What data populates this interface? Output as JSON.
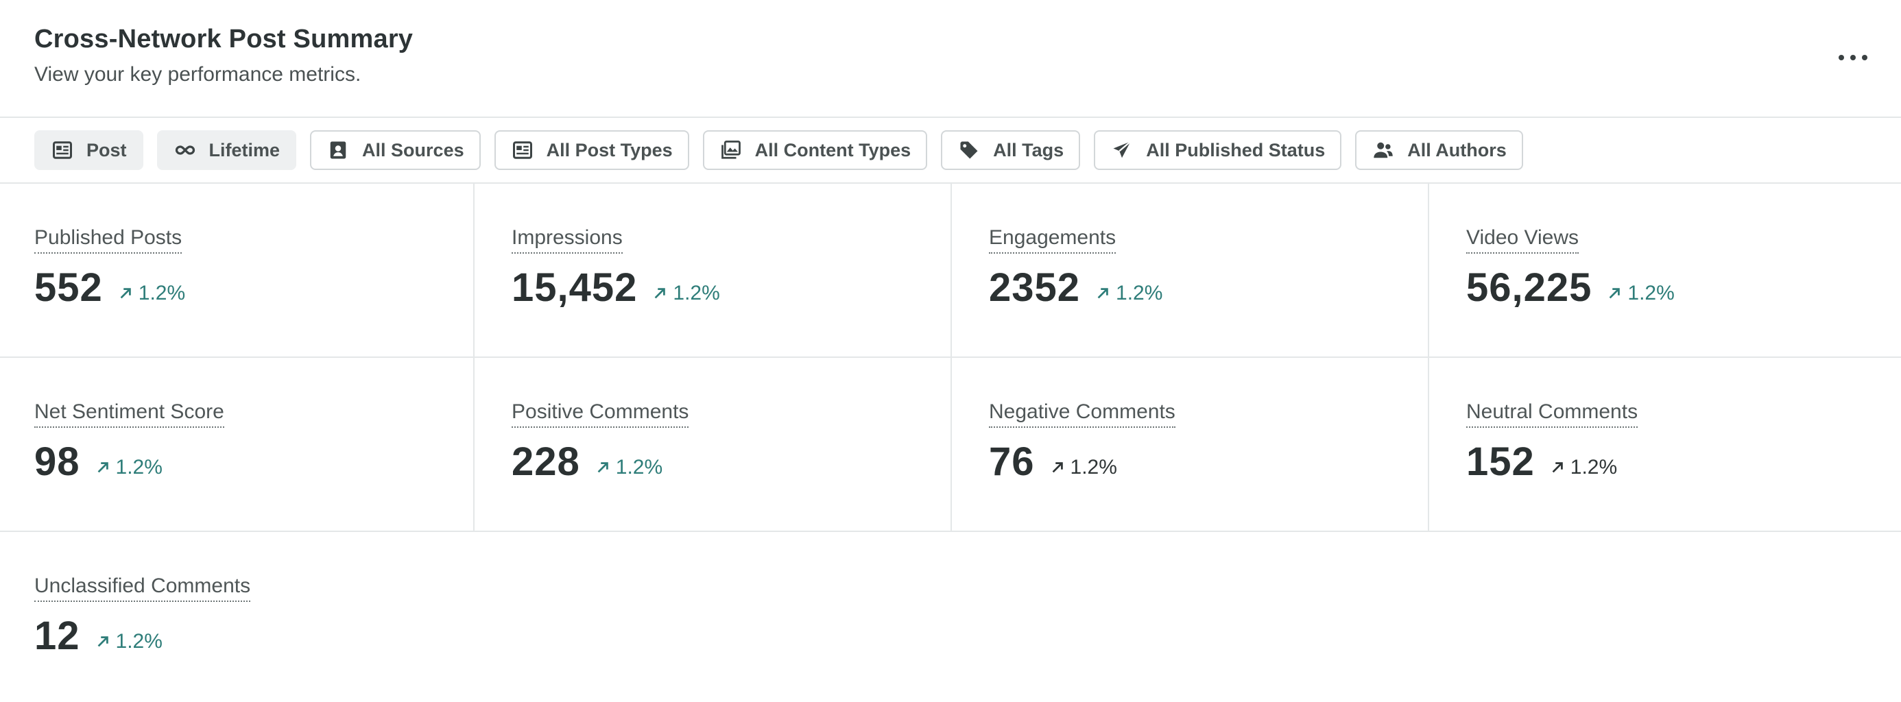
{
  "header": {
    "title": "Cross-Network Post Summary",
    "subtitle": "View your key performance metrics."
  },
  "filters": [
    {
      "label": "Post",
      "icon": "post-icon",
      "style": "filled"
    },
    {
      "label": "Lifetime",
      "icon": "infinity-icon",
      "style": "filled"
    },
    {
      "label": "All Sources",
      "icon": "profile-icon",
      "style": "outlined"
    },
    {
      "label": "All Post Types",
      "icon": "post-type-icon",
      "style": "outlined"
    },
    {
      "label": "All Content Types",
      "icon": "image-icon",
      "style": "outlined"
    },
    {
      "label": "All Tags",
      "icon": "tag-icon",
      "style": "outlined"
    },
    {
      "label": "All Published Status",
      "icon": "paper-plane-icon",
      "style": "outlined"
    },
    {
      "label": "All Authors",
      "icon": "users-icon",
      "style": "outlined"
    }
  ],
  "metrics": [
    {
      "label": "Published Posts",
      "value": "552",
      "change": "1.2%",
      "trend": "up",
      "color": "#2e7d79"
    },
    {
      "label": "Impressions",
      "value": "15,452",
      "change": "1.2%",
      "trend": "up",
      "color": "#2e7d79"
    },
    {
      "label": "Engagements",
      "value": "2352",
      "change": "1.2%",
      "trend": "up",
      "color": "#2e7d79"
    },
    {
      "label": "Video Views",
      "value": "56,225",
      "change": "1.2%",
      "trend": "up",
      "color": "#2e7d79"
    },
    {
      "label": "Net Sentiment Score",
      "value": "98",
      "change": "1.2%",
      "trend": "up",
      "color": "#2e7d79"
    },
    {
      "label": "Positive Comments",
      "value": "228",
      "change": "1.2%",
      "trend": "up",
      "color": "#2e7d79"
    },
    {
      "label": "Negative Comments",
      "value": "76",
      "change": "1.2%",
      "trend": "up",
      "color": "#2f3536"
    },
    {
      "label": "Neutral Comments",
      "value": "152",
      "change": "1.2%",
      "trend": "up",
      "color": "#2f3536"
    },
    {
      "label": "Unclassified Comments",
      "value": "12",
      "change": "1.2%",
      "trend": "up",
      "color": "#2e7d79"
    }
  ],
  "menu": {
    "icon": "more-horizontal-icon"
  }
}
